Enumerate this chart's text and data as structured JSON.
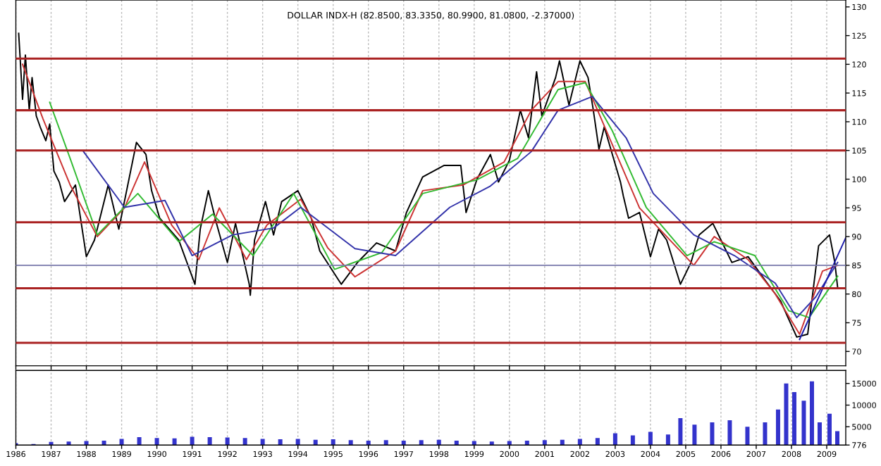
{
  "chart_data": [
    {
      "type": "line",
      "title": "DOLLAR INDX-H (82.8500, 83.3350, 80.9900, 81.0800, -2.37000)",
      "xlim": [
        1986,
        2009.54
      ],
      "xticks": [
        1986,
        1987,
        1988,
        1989,
        1990,
        1991,
        1992,
        1993,
        1994,
        1995,
        1996,
        1997,
        1998,
        1999,
        2000,
        2001,
        2002,
        2003,
        2004,
        2005,
        2006,
        2007,
        2008,
        2009
      ],
      "ylim": [
        67.5,
        131.2
      ],
      "yticks": [
        70,
        75,
        80,
        85,
        90,
        95,
        100,
        105,
        110,
        115,
        120,
        125,
        130
      ],
      "grid": "x",
      "tick_labels": "y",
      "line_style": "solid",
      "series": [
        {
          "color": "#000000",
          "x": [
            1986.08,
            1986.19,
            1986.27,
            1986.38,
            1986.46,
            1986.58,
            1986.69,
            1986.85,
            1986.96,
            1987.08,
            1987.23,
            1987.38,
            1987.69,
            1988.0,
            1988.23,
            1988.62,
            1988.92,
            1989.42,
            1989.69,
            1989.85,
            1990.08,
            1990.62,
            1991.08,
            1991.23,
            1991.46,
            1991.69,
            1992.0,
            1992.23,
            1992.62,
            1992.65,
            1992.77,
            1993.08,
            1993.31,
            1993.54,
            1994.0,
            1994.38,
            1994.62,
            1995.23,
            1995.69,
            1996.23,
            1996.77,
            1997.08,
            1997.54,
            1998.15,
            1998.62,
            1998.77,
            1999.08,
            1999.46,
            1999.69,
            2000.0,
            2000.31,
            2000.54,
            2000.77,
            2000.92,
            2001.31,
            2001.42,
            2001.69,
            2002.0,
            2002.23,
            2002.38,
            2002.54,
            2002.69,
            2002.92,
            2003.15,
            2003.23,
            2003.38,
            2003.69,
            2004.0,
            2004.23,
            2004.46,
            2004.85,
            2005.15,
            2005.38,
            2005.77,
            2006.0,
            2006.31,
            2006.77,
            2007.23,
            2007.69,
            2008.15,
            2008.46,
            2008.77,
            2009.08,
            2009.23,
            2009.31
          ],
          "values": [
            125.4,
            113.9,
            121.6,
            112.0,
            117.7,
            111.0,
            109.1,
            106.7,
            109.6,
            101.4,
            99.5,
            96.1,
            99.0,
            86.5,
            89.4,
            99.0,
            91.3,
            106.4,
            104.3,
            98.0,
            93.2,
            89.4,
            81.7,
            91.3,
            98.0,
            92.3,
            85.5,
            92.3,
            81.7,
            79.8,
            89.4,
            96.1,
            90.3,
            96.1,
            98.0,
            93.2,
            87.5,
            81.7,
            85.5,
            88.9,
            87.5,
            94.2,
            100.4,
            102.4,
            102.4,
            94.2,
            100.0,
            104.3,
            99.5,
            103.3,
            112.0,
            107.2,
            118.7,
            111.0,
            117.7,
            120.6,
            112.9,
            120.6,
            117.7,
            112.0,
            105.2,
            109.1,
            104.3,
            99.5,
            97.1,
            93.2,
            94.2,
            86.5,
            91.3,
            89.4,
            81.7,
            85.5,
            90.3,
            92.3,
            89.4,
            85.5,
            86.5,
            82.6,
            78.8,
            72.5,
            73.0,
            88.4,
            90.3,
            85.5,
            81.1
          ]
        },
        {
          "color": "#cc3333",
          "x": [
            1986.19,
            1986.77,
            1987.54,
            1988.31,
            1989.08,
            1989.65,
            1990.42,
            1991.19,
            1991.77,
            1992.54,
            1993.12,
            1994.08,
            1994.85,
            1995.62,
            1996.77,
            1997.54,
            1998.69,
            1999.85,
            2000.62,
            2001.38,
            2002.15,
            2002.92,
            2003.69,
            2004.46,
            2005.23,
            2005.81,
            2006.77,
            2007.54,
            2008.23,
            2008.88,
            2009.31
          ],
          "values": [
            120,
            110.5,
            99,
            90,
            95,
            103,
            92,
            86,
            95,
            86,
            92,
            96.5,
            88,
            83,
            87.5,
            98,
            99,
            103,
            112,
            117,
            117,
            106,
            95,
            90,
            85,
            90,
            86,
            80,
            73,
            84,
            85
          ]
        },
        {
          "color": "#33bb33",
          "x": [
            1986.96,
            1987.54,
            1988.31,
            1989.46,
            1990.62,
            1991.58,
            1992.73,
            1993.88,
            1995.04,
            1996.38,
            1997.54,
            1999.08,
            2000.23,
            2001.38,
            2002.15,
            2002.92,
            2003.88,
            2005.04,
            2005.81,
            2006.96,
            2007.92,
            2008.5,
            2009.31
          ],
          "values": [
            113.4,
            103.6,
            90.3,
            97.5,
            89.1,
            93.9,
            86.7,
            97.5,
            84.3,
            87.2,
            97.5,
            99.9,
            103.6,
            115.6,
            116.8,
            108.4,
            95.1,
            86.7,
            89.1,
            86.7,
            77.1,
            75.9,
            83.1
          ]
        },
        {
          "color": "#3333aa",
          "x": [
            1987.92,
            1989.08,
            1990.23,
            1991.0,
            1992.15,
            1993.31,
            1994.08,
            1995.62,
            1996.77,
            1998.31,
            1999.46,
            2000.62,
            2001.38,
            2002.35,
            2003.31,
            2004.08,
            2005.23,
            2006.38,
            2007.54,
            2008.15,
            2008.69,
            2009.31
          ],
          "values": [
            104.8,
            95.1,
            96.3,
            86.7,
            90.3,
            91.5,
            95.1,
            87.9,
            86.7,
            95.1,
            98.8,
            104.8,
            112.0,
            114.4,
            107.2,
            97.5,
            90.3,
            86.7,
            81.9,
            75.9,
            79.5,
            85.5
          ]
        },
        {
          "color": "#1a1aaa",
          "x": [
            2008.23,
            2009.54
          ],
          "values": [
            72.1,
            89.8
          ]
        }
      ],
      "ref_lines": [
        {
          "axis": "y",
          "value": 121,
          "color": "#aa2222"
        },
        {
          "axis": "y",
          "value": 112,
          "color": "#aa2222"
        },
        {
          "axis": "y",
          "value": 105,
          "color": "#aa2222"
        },
        {
          "axis": "y",
          "value": 92.5,
          "color": "#aa2222"
        },
        {
          "axis": "y",
          "value": 85,
          "color": "#7777aa"
        },
        {
          "axis": "y",
          "value": 81,
          "color": "#aa2222"
        },
        {
          "axis": "y",
          "value": 71.5,
          "color": "#aa2222"
        }
      ]
    },
    {
      "type": "bar",
      "xlim": [
        1986,
        2009.54
      ],
      "xticks": [
        1986,
        1987,
        1988,
        1989,
        1990,
        1991,
        1992,
        1993,
        1994,
        1995,
        1996,
        1997,
        1998,
        1999,
        2000,
        2001,
        2002,
        2003,
        2004,
        2005,
        2006,
        2007,
        2008,
        2009
      ],
      "ylim": [
        776,
        18000
      ],
      "yticks": [
        776,
        5000,
        10000,
        15000
      ],
      "grid": "x",
      "series": [
        {
          "color": "#3333cc",
          "x": [
            1986.0,
            1986.5,
            1987.0,
            1987.5,
            1988.0,
            1988.5,
            1989.0,
            1989.5,
            1990.0,
            1990.5,
            1991.0,
            1991.5,
            1992.0,
            1992.5,
            1993.0,
            1993.5,
            1994.0,
            1994.5,
            1995.0,
            1995.5,
            1996.0,
            1996.5,
            1997.0,
            1997.5,
            1998.0,
            1998.5,
            1999.0,
            1999.5,
            2000.0,
            2000.5,
            2001.0,
            2001.5,
            2002.0,
            2002.5,
            2003.0,
            2003.5,
            2004.0,
            2004.5,
            2004.85,
            2005.25,
            2005.75,
            2006.25,
            2006.75,
            2007.25,
            2007.62,
            2007.85,
            2008.08,
            2008.35,
            2008.58,
            2008.8,
            2009.08,
            2009.3
          ],
          "values": [
            1200,
            1000,
            1500,
            1600,
            1700,
            1800,
            2200,
            2600,
            2400,
            2300,
            2700,
            2600,
            2500,
            2400,
            2200,
            2100,
            2200,
            2000,
            2100,
            1900,
            1800,
            1900,
            1800,
            1900,
            2000,
            1800,
            1700,
            1600,
            1700,
            1800,
            1900,
            2000,
            2200,
            2400,
            3500,
            3000,
            3800,
            3200,
            7000,
            5500,
            6000,
            6500,
            5000,
            6000,
            9000,
            15000,
            13000,
            11000,
            15500,
            6000,
            8000,
            4000
          ]
        }
      ]
    }
  ]
}
